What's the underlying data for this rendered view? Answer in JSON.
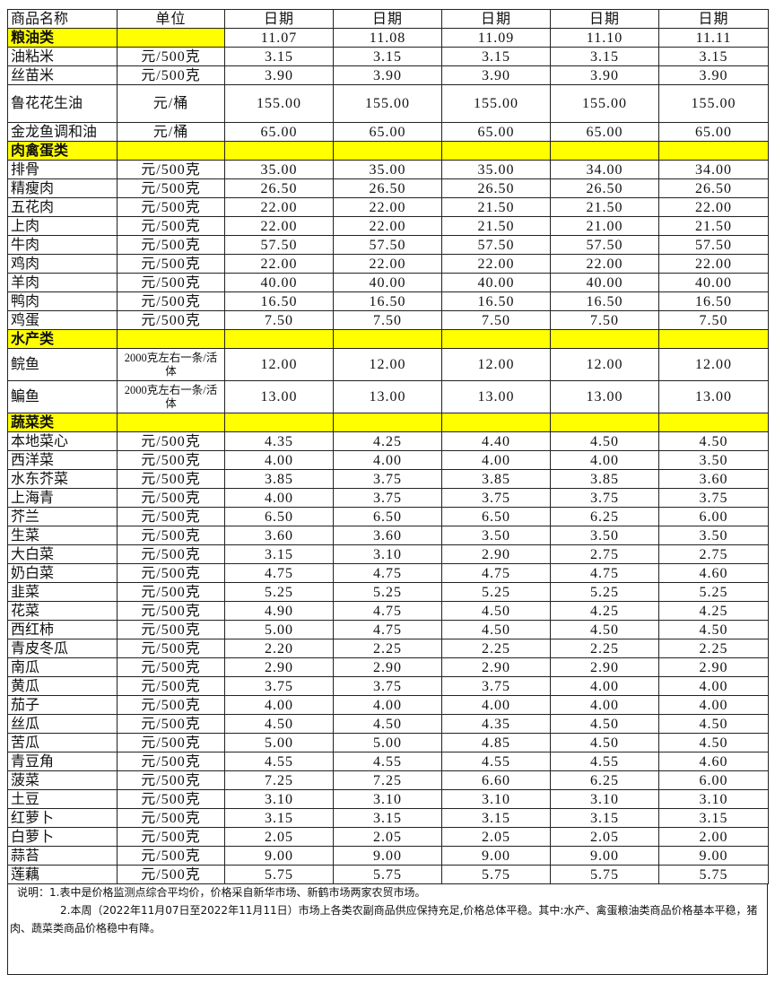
{
  "header": {
    "name": "商品名称",
    "unit": "单位",
    "dates": [
      "日期",
      "日期",
      "日期",
      "日期",
      "日期"
    ]
  },
  "highlight_color": "#ffff00",
  "sections": [
    {
      "category": "粮油类",
      "values": [
        "11.07",
        "11.08",
        "11.09",
        "11.10",
        "11.11"
      ],
      "items": [
        {
          "name": "油粘米",
          "unit": "元/500克",
          "values": [
            "3.15",
            "3.15",
            "3.15",
            "3.15",
            "3.15"
          ]
        },
        {
          "name": "丝苗米",
          "unit": "元/500克",
          "values": [
            "3.90",
            "3.90",
            "3.90",
            "3.90",
            "3.90"
          ]
        },
        {
          "name": "鲁花花生油",
          "unit": "元/桶",
          "values": [
            "155.00",
            "155.00",
            "155.00",
            "155.00",
            "155.00"
          ],
          "tall": true
        },
        {
          "name": "金龙鱼调和油",
          "unit": "元/桶",
          "values": [
            "65.00",
            "65.00",
            "65.00",
            "65.00",
            "65.00"
          ]
        }
      ]
    },
    {
      "category": "肉禽蛋类",
      "values": [
        "",
        "",
        "",
        "",
        ""
      ],
      "items": [
        {
          "name": "排骨",
          "unit": "元/500克",
          "values": [
            "35.00",
            "35.00",
            "35.00",
            "34.00",
            "34.00"
          ]
        },
        {
          "name": "精瘦肉",
          "unit": "元/500克",
          "values": [
            "26.50",
            "26.50",
            "26.50",
            "26.50",
            "26.50"
          ]
        },
        {
          "name": "五花肉",
          "unit": "元/500克",
          "values": [
            "22.00",
            "22.00",
            "21.50",
            "21.50",
            "22.00"
          ]
        },
        {
          "name": "上肉",
          "unit": "元/500克",
          "values": [
            "22.00",
            "22.00",
            "21.50",
            "21.00",
            "21.50"
          ]
        },
        {
          "name": "牛肉",
          "unit": "元/500克",
          "values": [
            "57.50",
            "57.50",
            "57.50",
            "57.50",
            "57.50"
          ]
        },
        {
          "name": "鸡肉",
          "unit": "元/500克",
          "values": [
            "22.00",
            "22.00",
            "22.00",
            "22.00",
            "22.00"
          ]
        },
        {
          "name": "羊肉",
          "unit": "元/500克",
          "values": [
            "40.00",
            "40.00",
            "40.00",
            "40.00",
            "40.00"
          ]
        },
        {
          "name": "鸭肉",
          "unit": "元/500克",
          "values": [
            "16.50",
            "16.50",
            "16.50",
            "16.50",
            "16.50"
          ]
        },
        {
          "name": "鸡蛋",
          "unit": "元/500克",
          "values": [
            "7.50",
            "7.50",
            "7.50",
            "7.50",
            "7.50"
          ]
        }
      ]
    },
    {
      "category": "水产类",
      "values": [
        "",
        "",
        "",
        "",
        ""
      ],
      "items": [
        {
          "name": "鲩鱼",
          "unit": "2000克左右一条/活体",
          "values": [
            "12.00",
            "12.00",
            "12.00",
            "12.00",
            "12.00"
          ],
          "fish": true
        },
        {
          "name": "鳊鱼",
          "unit": "2000克左右一条/活体",
          "values": [
            "13.00",
            "13.00",
            "13.00",
            "13.00",
            "13.00"
          ],
          "fish": true
        }
      ]
    },
    {
      "category": "蔬菜类",
      "values": [
        "",
        "",
        "",
        "",
        ""
      ],
      "items": [
        {
          "name": "本地菜心",
          "unit": "元/500克",
          "values": [
            "4.35",
            "4.25",
            "4.40",
            "4.50",
            "4.50"
          ]
        },
        {
          "name": "西洋菜",
          "unit": "元/500克",
          "values": [
            "4.00",
            "4.00",
            "4.00",
            "4.00",
            "3.50"
          ]
        },
        {
          "name": "水东芥菜",
          "unit": "元/500克",
          "values": [
            "3.85",
            "3.75",
            "3.85",
            "3.85",
            "3.60"
          ]
        },
        {
          "name": "上海青",
          "unit": "元/500克",
          "values": [
            "4.00",
            "3.75",
            "3.75",
            "3.75",
            "3.75"
          ]
        },
        {
          "name": "芥兰",
          "unit": "元/500克",
          "values": [
            "6.50",
            "6.50",
            "6.50",
            "6.25",
            "6.00"
          ]
        },
        {
          "name": "生菜",
          "unit": "元/500克",
          "values": [
            "3.60",
            "3.60",
            "3.50",
            "3.50",
            "3.50"
          ]
        },
        {
          "name": "大白菜",
          "unit": "元/500克",
          "values": [
            "3.15",
            "3.10",
            "2.90",
            "2.75",
            "2.75"
          ]
        },
        {
          "name": "奶白菜",
          "unit": "元/500克",
          "values": [
            "4.75",
            "4.75",
            "4.75",
            "4.75",
            "4.60"
          ]
        },
        {
          "name": "韭菜",
          "unit": "元/500克",
          "values": [
            "5.25",
            "5.25",
            "5.25",
            "5.25",
            "5.25"
          ]
        },
        {
          "name": "花菜",
          "unit": "元/500克",
          "values": [
            "4.90",
            "4.75",
            "4.50",
            "4.25",
            "4.25"
          ]
        },
        {
          "name": "西红柿",
          "unit": "元/500克",
          "values": [
            "5.00",
            "4.75",
            "4.50",
            "4.50",
            "4.50"
          ]
        },
        {
          "name": "青皮冬瓜",
          "unit": "元/500克",
          "values": [
            "2.20",
            "2.25",
            "2.25",
            "2.25",
            "2.25"
          ]
        },
        {
          "name": "南瓜",
          "unit": "元/500克",
          "values": [
            "2.90",
            "2.90",
            "2.90",
            "2.90",
            "2.90"
          ]
        },
        {
          "name": "黄瓜",
          "unit": "元/500克",
          "values": [
            "3.75",
            "3.75",
            "3.75",
            "4.00",
            "4.00"
          ]
        },
        {
          "name": "茄子",
          "unit": "元/500克",
          "values": [
            "4.00",
            "4.00",
            "4.00",
            "4.00",
            "4.00"
          ]
        },
        {
          "name": "丝瓜",
          "unit": "元/500克",
          "values": [
            "4.50",
            "4.50",
            "4.35",
            "4.50",
            "4.50"
          ]
        },
        {
          "name": "苦瓜",
          "unit": "元/500克",
          "values": [
            "5.00",
            "5.00",
            "4.85",
            "4.50",
            "4.50"
          ]
        },
        {
          "name": "青豆角",
          "unit": "元/500克",
          "values": [
            "4.55",
            "4.55",
            "4.55",
            "4.55",
            "4.60"
          ]
        },
        {
          "name": "菠菜",
          "unit": "元/500克",
          "values": [
            "7.25",
            "7.25",
            "6.60",
            "6.25",
            "6.00"
          ]
        },
        {
          "name": "土豆",
          "unit": "元/500克",
          "values": [
            "3.10",
            "3.10",
            "3.10",
            "3.10",
            "3.10"
          ]
        },
        {
          "name": "红萝卜",
          "unit": "元/500克",
          "values": [
            "3.15",
            "3.15",
            "3.15",
            "3.15",
            "3.15"
          ]
        },
        {
          "name": "白萝卜",
          "unit": "元/500克",
          "values": [
            "2.05",
            "2.05",
            "2.05",
            "2.05",
            "2.00"
          ]
        },
        {
          "name": "蒜苔",
          "unit": "元/500克",
          "values": [
            "9.00",
            "9.00",
            "9.00",
            "9.00",
            "9.00"
          ]
        },
        {
          "name": "莲藕",
          "unit": "元/500克",
          "values": [
            "5.75",
            "5.75",
            "5.75",
            "5.75",
            "5.75"
          ]
        }
      ]
    }
  ],
  "notes": {
    "line1": "说明：1.表中是价格监测点综合平均价，价格采自新华市场、新鹤市场两家农贸市场。",
    "line2": "2.本周（2022年11月07日至2022年11月11日）市场上各类农副商品供应保持充足,价格总体平稳。其中:水产、禽蛋粮油类商品价格基本平稳，猪肉、蔬菜类商品价格稳中有降。"
  }
}
